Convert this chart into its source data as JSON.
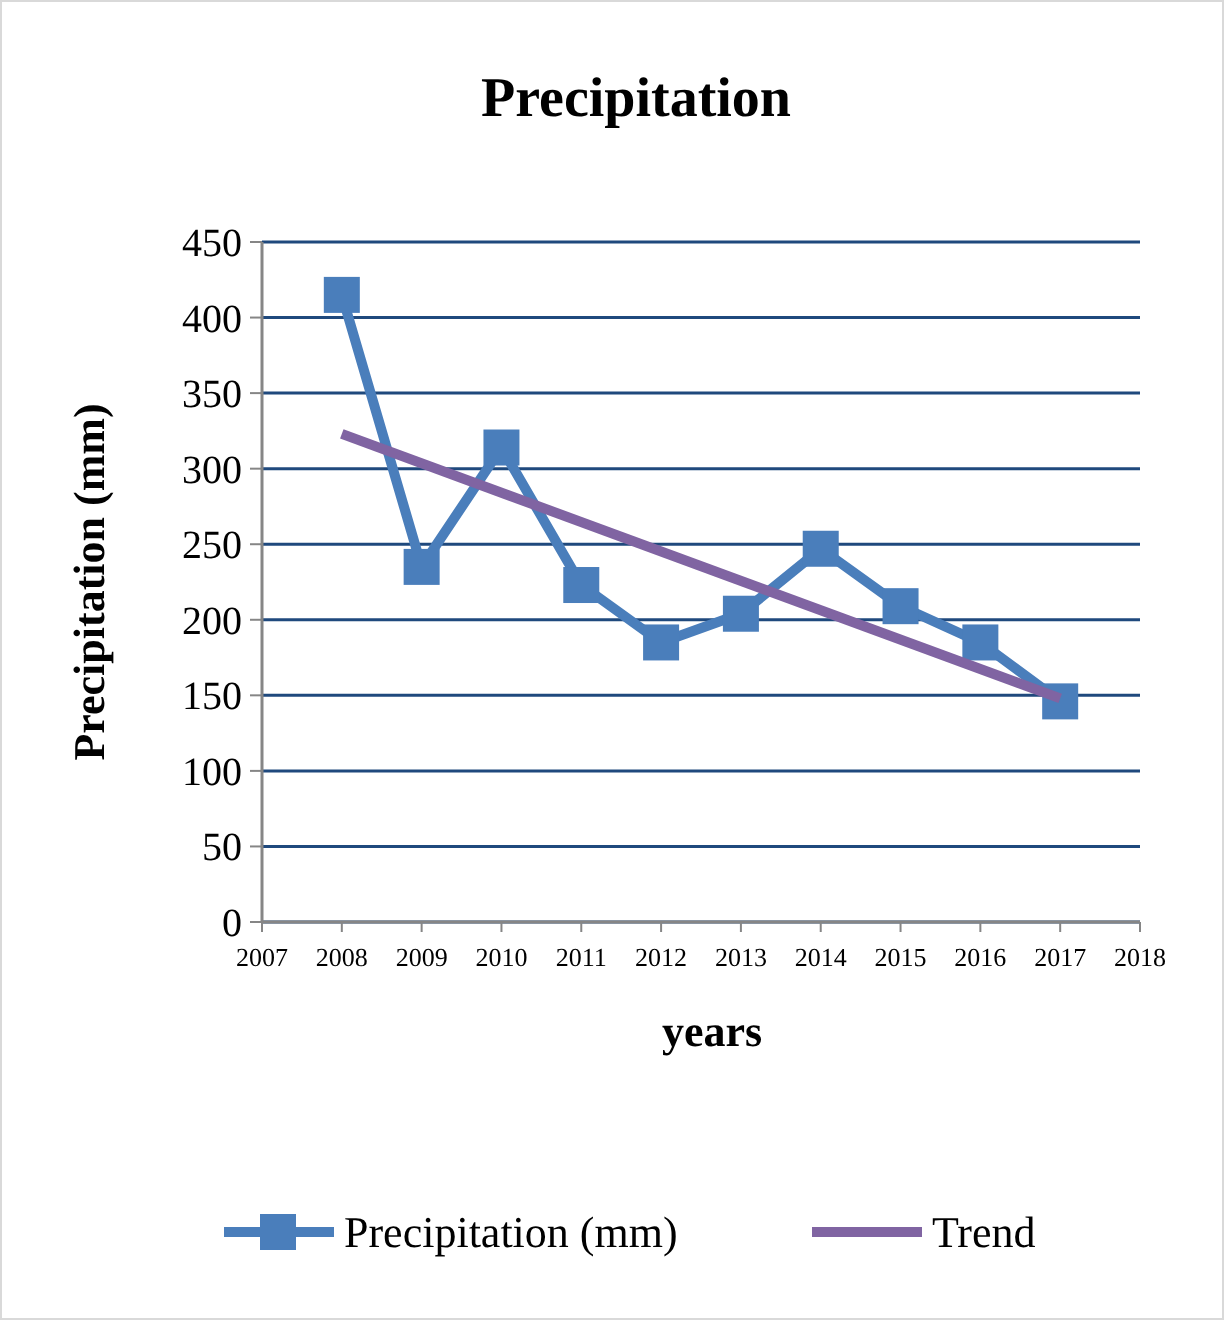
{
  "chart_data": {
    "type": "line",
    "title": "Precipitation",
    "xlabel": "years",
    "ylabel": "Precipitation (mm)",
    "xlim": [
      2007,
      2018
    ],
    "xticks": [
      2007,
      2008,
      2009,
      2010,
      2011,
      2012,
      2013,
      2014,
      2015,
      2016,
      2017,
      2018
    ],
    "ylim": [
      0,
      450
    ],
    "yticks": [
      0,
      50,
      100,
      150,
      200,
      250,
      300,
      350,
      400,
      450
    ],
    "grid": "y",
    "legend": "bottom",
    "series": [
      {
        "name": "Precipitation (mm)",
        "color": "#4a7ebb",
        "marker": "square",
        "x": [
          2008,
          2009,
          2010,
          2011,
          2012,
          2013,
          2014,
          2015,
          2016,
          2017
        ],
        "values": [
          415,
          235,
          314,
          223,
          185,
          204,
          247,
          209,
          185,
          146
        ]
      },
      {
        "name": "Trend",
        "color": "#8064a2",
        "marker": "none",
        "x": [
          2008,
          2017
        ],
        "values": [
          323,
          148
        ]
      }
    ]
  }
}
